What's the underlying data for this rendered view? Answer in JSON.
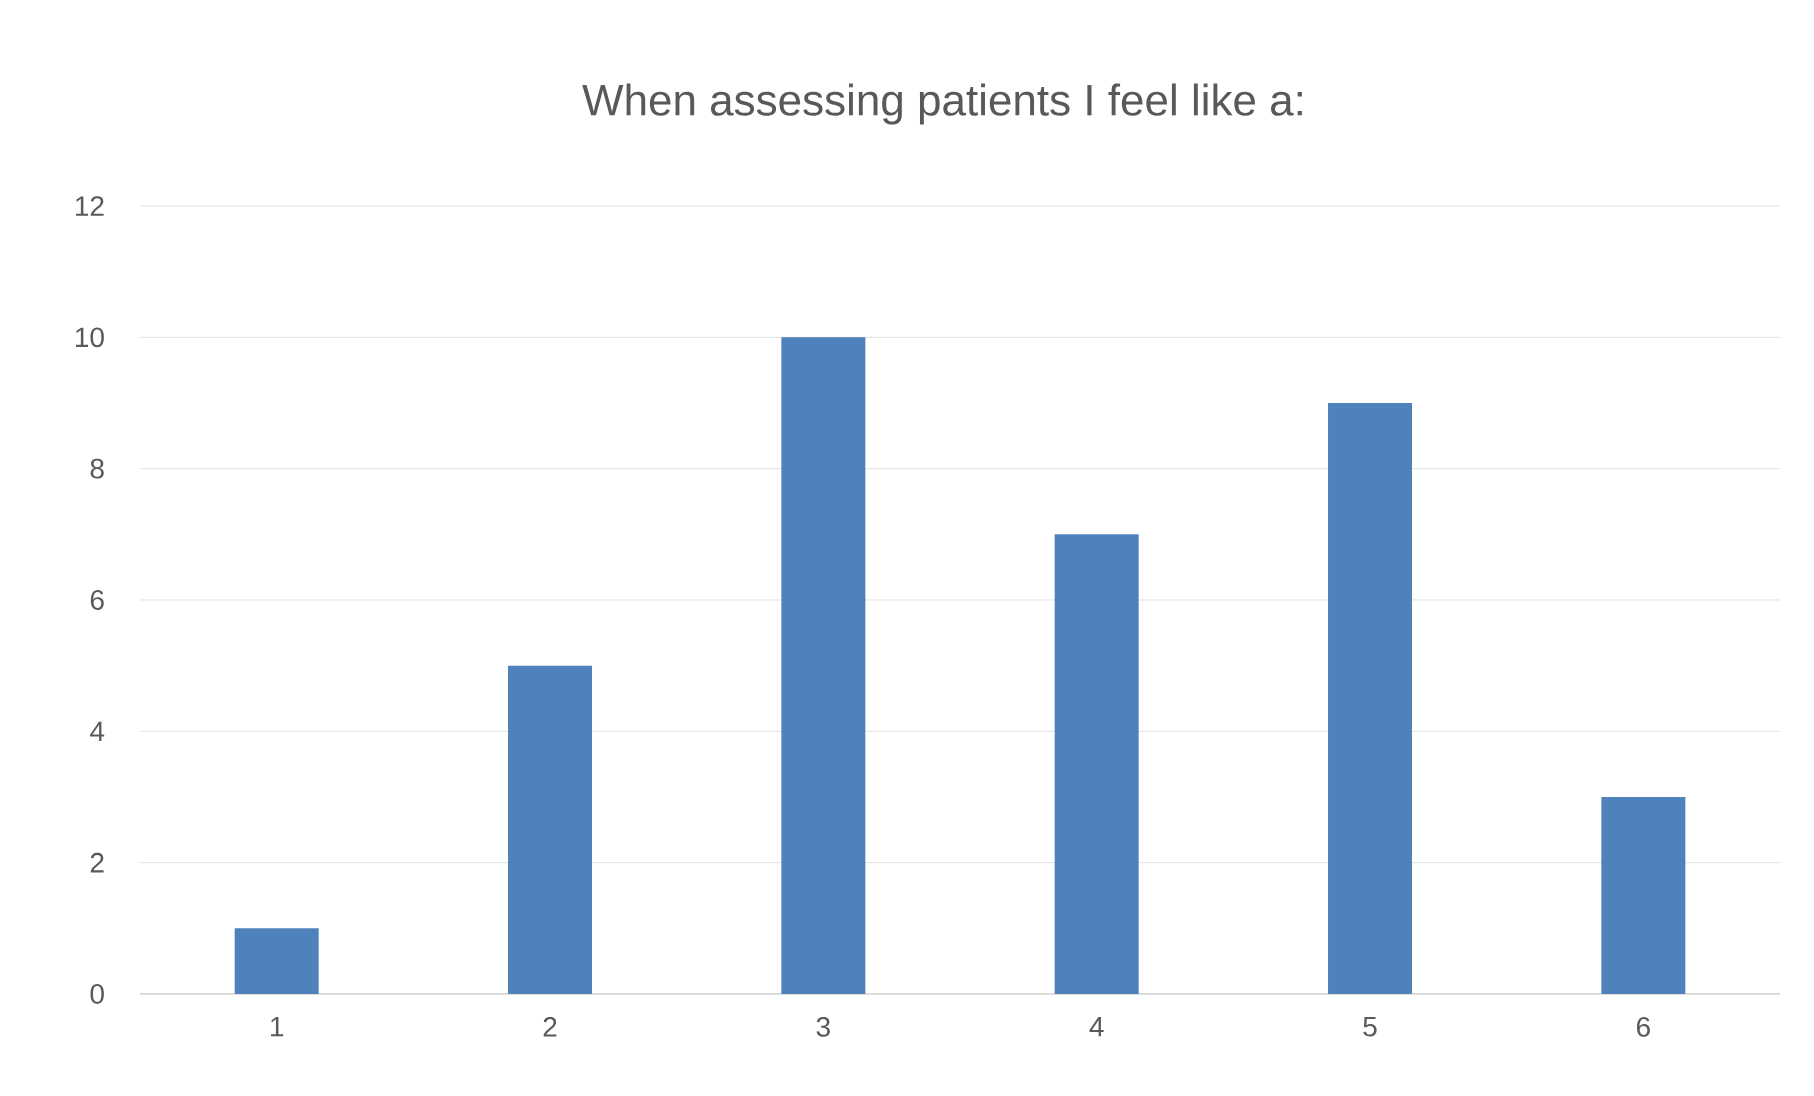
{
  "chart_data": {
    "type": "bar",
    "title": "When assessing patients I feel like a:",
    "categories": [
      "1",
      "2",
      "3",
      "4",
      "5",
      "6"
    ],
    "values": [
      1,
      5,
      10,
      7,
      9,
      3
    ],
    "color": "#4f81bd",
    "ylim": [
      0,
      12
    ],
    "yticks": [
      0,
      2,
      4,
      6,
      8,
      10,
      12
    ],
    "grid": "y"
  }
}
